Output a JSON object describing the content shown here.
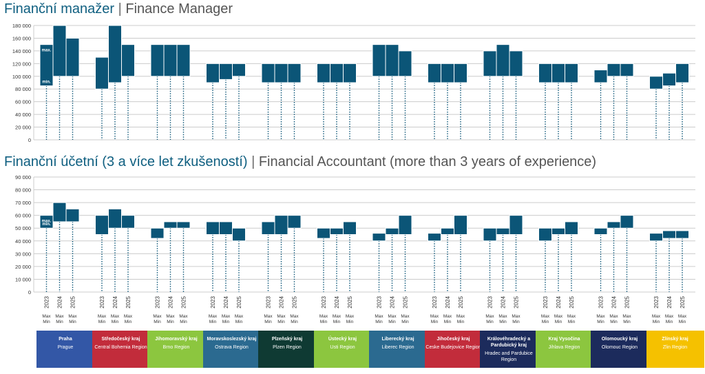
{
  "charts": [
    {
      "title_cz": "Finanční manažer",
      "title_en": "Finance Manager",
      "chart_data": {
        "type": "bar",
        "subtype": "floating range (min–max) per year",
        "title": "Finanční manažer | Finance Manager",
        "ylim": [
          0,
          180000
        ],
        "yticks": [
          0,
          20000,
          40000,
          60000,
          80000,
          100000,
          120000,
          140000,
          160000,
          180000
        ],
        "ytick_labels": [
          "0",
          "20 000",
          "40 000",
          "60 000",
          "80 000",
          "100 000",
          "120 000",
          "140 000",
          "160 000",
          "180 000"
        ],
        "years": [
          "2023",
          "2024",
          "2025"
        ],
        "grid": true,
        "inline_labels": {
          "max": "max.",
          "min": "min."
        },
        "series": [
          {
            "region": "Praha",
            "min": [
              85000,
              100000,
              100000
            ],
            "max": [
              150000,
              180000,
              160000
            ]
          },
          {
            "region": "Středočeský kraj",
            "min": [
              80000,
              90000,
              100000
            ],
            "max": [
              130000,
              180000,
              150000
            ]
          },
          {
            "region": "Jihomoravský kraj",
            "min": [
              100000,
              100000,
              100000
            ],
            "max": [
              150000,
              150000,
              150000
            ]
          },
          {
            "region": "Moravskoslezský kraj",
            "min": [
              90000,
              95000,
              100000
            ],
            "max": [
              120000,
              120000,
              120000
            ]
          },
          {
            "region": "Plzeňský kraj",
            "min": [
              90000,
              90000,
              90000
            ],
            "max": [
              120000,
              120000,
              120000
            ]
          },
          {
            "region": "Ústecký kraj",
            "min": [
              90000,
              90000,
              90000
            ],
            "max": [
              120000,
              120000,
              120000
            ]
          },
          {
            "region": "Liberecký kraj",
            "min": [
              100000,
              100000,
              100000
            ],
            "max": [
              150000,
              150000,
              140000
            ]
          },
          {
            "region": "Jihočeský kraj",
            "min": [
              90000,
              90000,
              90000
            ],
            "max": [
              120000,
              120000,
              120000
            ]
          },
          {
            "region": "Královéhradecký a Pardubický kraj",
            "min": [
              100000,
              100000,
              100000
            ],
            "max": [
              140000,
              150000,
              140000
            ]
          },
          {
            "region": "Kraj Vysočina",
            "min": [
              90000,
              90000,
              90000
            ],
            "max": [
              120000,
              120000,
              120000
            ]
          },
          {
            "region": "Olomoucký kraj",
            "min": [
              90000,
              100000,
              100000
            ],
            "max": [
              110000,
              120000,
              120000
            ]
          },
          {
            "region": "Zlínský kraj",
            "min": [
              80000,
              85000,
              90000
            ],
            "max": [
              100000,
              105000,
              120000
            ]
          }
        ]
      }
    },
    {
      "title_cz": "Finanční účetní (3 a více let zkušeností)",
      "title_en": "Financial Accountant (more than 3 years of experience)",
      "chart_data": {
        "type": "bar",
        "subtype": "floating range (min–max) per year",
        "title": "Finanční účetní (3 a více let zkušeností) | Financial Accountant (more than 3 years of experience)",
        "ylim": [
          0,
          90000
        ],
        "yticks": [
          0,
          10000,
          20000,
          30000,
          40000,
          50000,
          60000,
          70000,
          80000,
          90000
        ],
        "ytick_labels": [
          "0",
          "10 000",
          "20 000",
          "30 000",
          "40 000",
          "50 000",
          "60 000",
          "70 000",
          "80 000",
          "90 000"
        ],
        "years": [
          "2023",
          "2024",
          "2025"
        ],
        "grid": true,
        "inline_labels": {
          "max": "max.",
          "min": "min."
        },
        "series": [
          {
            "region": "Praha",
            "min": [
              50000,
              55000,
              55000
            ],
            "max": [
              60000,
              70000,
              65000
            ]
          },
          {
            "region": "Středočeský kraj",
            "min": [
              45000,
              50000,
              50000
            ],
            "max": [
              60000,
              65000,
              60000
            ]
          },
          {
            "region": "Jihomoravský kraj",
            "min": [
              42000,
              50000,
              50000
            ],
            "max": [
              50000,
              55000,
              55000
            ]
          },
          {
            "region": "Moravskoslezský kraj",
            "min": [
              45000,
              45000,
              40000
            ],
            "max": [
              55000,
              55000,
              50000
            ]
          },
          {
            "region": "Plzeňský kraj",
            "min": [
              45000,
              45000,
              50000
            ],
            "max": [
              55000,
              60000,
              60000
            ]
          },
          {
            "region": "Ústecký kraj",
            "min": [
              42000,
              45000,
              45000
            ],
            "max": [
              50000,
              50000,
              55000
            ]
          },
          {
            "region": "Liberecký kraj",
            "min": [
              40000,
              45000,
              45000
            ],
            "max": [
              46000,
              50000,
              60000
            ]
          },
          {
            "region": "Jihočeský kraj",
            "min": [
              40000,
              45000,
              45000
            ],
            "max": [
              46000,
              50000,
              60000
            ]
          },
          {
            "region": "Královéhradecký a Pardubický kraj",
            "min": [
              40000,
              45000,
              45000
            ],
            "max": [
              50000,
              50000,
              60000
            ]
          },
          {
            "region": "Kraj Vysočina",
            "min": [
              40000,
              45000,
              45000
            ],
            "max": [
              50000,
              50000,
              55000
            ]
          },
          {
            "region": "Olomoucký kraj",
            "min": [
              45000,
              50000,
              50000
            ],
            "max": [
              50000,
              55000,
              60000
            ]
          },
          {
            "region": "Zlínský kraj",
            "min": [
              40000,
              42000,
              42000
            ],
            "max": [
              46000,
              48000,
              48000
            ]
          }
        ]
      }
    }
  ],
  "x_axis": {
    "year_labels": [
      "2023",
      "2024",
      "2025"
    ],
    "minmax_label_top": "Max",
    "minmax_label_bottom": "Min"
  },
  "regions": [
    {
      "cz": "Praha",
      "en": "Prague",
      "color": "#3357a6"
    },
    {
      "cz": "Středočeský kraj",
      "en": "Central Bohemia Region",
      "color": "#c22c3b"
    },
    {
      "cz": "Jihomoravský kraj",
      "en": "Brno Region",
      "color": "#8cc63f"
    },
    {
      "cz": "Moravskoslezský kraj",
      "en": "Ostrava Region",
      "color": "#2b6a90"
    },
    {
      "cz": "Plzeňský kraj",
      "en": "Plzen Region",
      "color": "#0f3a33"
    },
    {
      "cz": "Ústecký kraj",
      "en": "Usti Region",
      "color": "#8cc63f"
    },
    {
      "cz": "Liberecký kraj",
      "en": "Liberec Region",
      "color": "#2b6a90"
    },
    {
      "cz": "Jihočeský kraj",
      "en": "Ceske Budejovice Region",
      "color": "#c22c3b"
    },
    {
      "cz": "Královéhradecký a Pardubický kraj",
      "en": "Hradec and Pardubice Region",
      "color": "#1c2b5c"
    },
    {
      "cz": "Kraj Vysočina",
      "en": "Jihlava Region",
      "color": "#8cc63f"
    },
    {
      "cz": "Olomoucký kraj",
      "en": "Olomouc Region",
      "color": "#1c2b5c"
    },
    {
      "cz": "Zlínský kraj",
      "en": "Zlin Region",
      "color": "#f5c100"
    }
  ],
  "colors": {
    "bar_fill": "#0b5577",
    "bar_stroke": "#ffffff",
    "grid": "#cccccc",
    "dotted": "#0b5577",
    "axis_text": "#333333"
  }
}
